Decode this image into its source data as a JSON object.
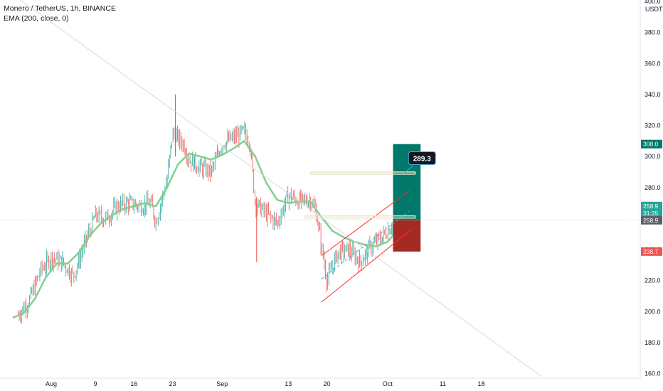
{
  "legend": {
    "symbol": "Monero / TetherUS, 1h, BINANCE",
    "indicator": "EMA (200, close, 0)"
  },
  "currency": "USDT",
  "colors": {
    "up": "#26a69a",
    "down": "#ef5350",
    "ema": "#7fd08e",
    "target": "#00796b",
    "stop": "#a52a24",
    "channel": "#ff2b2b",
    "trendline": "#d9d9d9",
    "level": "#e8e6c8"
  },
  "tags": {
    "target_price": "308.0",
    "current_price": "258.9",
    "countdown": "31:25",
    "last_price": "258.9",
    "stop_price": "238.7",
    "callout": "289.3"
  },
  "chart_data": {
    "type": "candlestick",
    "title": "Monero / TetherUS, 1h, BINANCE",
    "xlabel": "",
    "ylabel": "",
    "ylim": [
      158,
      402
    ],
    "y_ticks": [
      "160.0",
      "180.0",
      "200.0",
      "220.0",
      "240.0",
      "260.0",
      "280.0",
      "300.0",
      "320.0",
      "340.0",
      "360.0",
      "380.0",
      "400.0"
    ],
    "x_ticks": [
      "Aug",
      "9",
      "16",
      "23",
      "Sep",
      "13",
      "20",
      "Oct",
      "11",
      "18"
    ],
    "close_trend": [
      [
        "Jul 26",
        198
      ],
      [
        "Jul 28",
        207
      ],
      [
        "Jul 30",
        226
      ],
      [
        "Aug 1",
        235
      ],
      [
        "Aug 3",
        232
      ],
      [
        "Aug 5",
        223
      ],
      [
        "Aug 7",
        243
      ],
      [
        "Aug 9",
        262
      ],
      [
        "Aug 11",
        260
      ],
      [
        "Aug 13",
        268
      ],
      [
        "Aug 15",
        270
      ],
      [
        "Aug 17",
        268
      ],
      [
        "Aug 19",
        270
      ],
      [
        "Aug 20",
        258
      ],
      [
        "Aug 22",
        285
      ],
      [
        "Aug 23",
        315
      ],
      [
        "Aug 25",
        308
      ],
      [
        "Aug 26",
        298
      ],
      [
        "Aug 28",
        293
      ],
      [
        "Aug 30",
        290
      ],
      [
        "Sep 1",
        308
      ],
      [
        "Sep 3",
        312
      ],
      [
        "Sep 5",
        316
      ],
      [
        "Sep 6",
        310
      ],
      [
        "Sep 7",
        270
      ],
      [
        "Sep 9",
        263
      ],
      [
        "Sep 11",
        257
      ],
      [
        "Sep 13",
        275
      ],
      [
        "Sep 15",
        271
      ],
      [
        "Sep 17",
        272
      ],
      [
        "Sep 18",
        265
      ],
      [
        "Sep 20",
        220
      ],
      [
        "Sep 22",
        238
      ],
      [
        "Sep 24",
        240
      ],
      [
        "Sep 26",
        232
      ],
      [
        "Sep 28",
        242
      ],
      [
        "Sep 30",
        248
      ],
      [
        "Oct 2",
        257
      ]
    ],
    "ema_200": [
      [
        "Jul 25",
        196
      ],
      [
        "Jul 27",
        199
      ],
      [
        "Jul 29",
        208
      ],
      [
        "Jul 31",
        222
      ],
      [
        "Aug 2",
        231
      ],
      [
        "Aug 4",
        231
      ],
      [
        "Aug 6",
        238
      ],
      [
        "Aug 8",
        249
      ],
      [
        "Aug 10",
        257
      ],
      [
        "Aug 12",
        262
      ],
      [
        "Aug 14",
        266
      ],
      [
        "Aug 16",
        268
      ],
      [
        "Aug 18",
        270
      ],
      [
        "Aug 20",
        268
      ],
      [
        "Aug 22",
        280
      ],
      [
        "Aug 24",
        295
      ],
      [
        "Aug 26",
        302
      ],
      [
        "Aug 28",
        300
      ],
      [
        "Aug 30",
        298
      ],
      [
        "Sep 1",
        301
      ],
      [
        "Sep 3",
        305
      ],
      [
        "Sep 5",
        310
      ],
      [
        "Sep 7",
        300
      ],
      [
        "Sep 9",
        283
      ],
      [
        "Sep 11",
        272
      ],
      [
        "Sep 13",
        270
      ],
      [
        "Sep 15",
        271
      ],
      [
        "Sep 17",
        271
      ],
      [
        "Sep 19",
        261
      ],
      [
        "Sep 21",
        252
      ],
      [
        "Sep 23",
        248
      ],
      [
        "Sep 25",
        245
      ],
      [
        "Sep 27",
        243
      ],
      [
        "Sep 29",
        242
      ],
      [
        "Oct 1",
        245
      ],
      [
        "Oct 2",
        249
      ]
    ],
    "trendline": [
      [
        "Jul 26",
        402
      ],
      [
        "Oct 29",
        158
      ]
    ],
    "channel": {
      "lower": [
        [
          "Sep 19",
          206
        ],
        [
          "Oct 5",
          252
        ]
      ],
      "upper": [
        [
          "Sep 19",
          236
        ],
        [
          "Oct 5",
          278
        ]
      ],
      "middle": [
        [
          "Sep 19",
          221
        ],
        [
          "Oct 5",
          265
        ]
      ]
    },
    "levels": [
      {
        "price": 289.3,
        "from": "Sep 17",
        "to": "Oct 6"
      },
      {
        "price": 261.0,
        "from": "Sep 16",
        "to": "Oct 6"
      }
    ],
    "position": {
      "type": "long",
      "from": "Oct 2",
      "to": "Oct 7",
      "entry": 258.9,
      "target": 308.0,
      "stop": 238.7
    }
  }
}
